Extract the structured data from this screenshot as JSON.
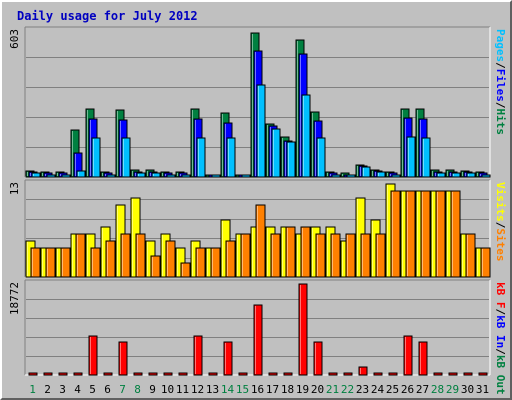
{
  "chart_data": {
    "type": "bar",
    "title": "Daily usage for July 2012",
    "categories": [
      "1",
      "2",
      "3",
      "4",
      "5",
      "6",
      "7",
      "8",
      "9",
      "10",
      "11",
      "12",
      "13",
      "14",
      "15",
      "16",
      "17",
      "18",
      "19",
      "20",
      "21",
      "22",
      "23",
      "24",
      "25",
      "26",
      "27",
      "28",
      "29",
      "30",
      "31"
    ],
    "weekend_days": [
      "1",
      "7",
      "8",
      "14",
      "15",
      "21",
      "22",
      "28",
      "29"
    ],
    "panels": [
      {
        "id": "requests",
        "max_label": "603",
        "ymax": 603,
        "side_labels": [
          "Pages",
          "/",
          "Files",
          "/",
          "Hits"
        ],
        "side_colors": [
          "#00c0ff",
          "#000000",
          "#0000ff",
          "#000000",
          "#008040"
        ],
        "series": [
          {
            "name": "Hits",
            "color": "#008040",
            "values": [
              24,
              20,
              20,
              195,
              280,
              20,
              275,
              30,
              30,
              20,
              20,
              280,
              10,
              265,
              10,
              595,
              220,
              165,
              565,
              270,
              20,
              15,
              50,
              30,
              20,
              280,
              280,
              30,
              30,
              25,
              20
            ]
          },
          {
            "name": "Files",
            "color": "#0000ff",
            "values": [
              20,
              15,
              15,
              100,
              240,
              15,
              235,
              20,
              20,
              15,
              15,
              240,
              5,
              225,
              5,
              520,
              210,
              150,
              510,
              230,
              15,
              10,
              45,
              25,
              15,
              245,
              240,
              20,
              20,
              20,
              15
            ]
          },
          {
            "name": "Pages",
            "color": "#00c0ff",
            "values": [
              15,
              10,
              10,
              25,
              160,
              10,
              160,
              15,
              15,
              10,
              10,
              160,
              2,
              160,
              2,
              380,
              200,
              145,
              340,
              160,
              10,
              5,
              40,
              20,
              10,
              165,
              160,
              15,
              15,
              15,
              10
            ]
          }
        ]
      },
      {
        "id": "visits",
        "max_label": "13",
        "ymax": 13,
        "side_labels": [
          "Visits",
          "/",
          "Sites"
        ],
        "side_colors": [
          "#ffff00",
          "#000000",
          "#ff8000"
        ],
        "series": [
          {
            "name": "Visits",
            "color": "#ffff00",
            "values": [
              5,
              4,
              4,
              6,
              6,
              7,
              10,
              11,
              5,
              6,
              4,
              5,
              4,
              8,
              6,
              7,
              7,
              7,
              6,
              7,
              7,
              5,
              11,
              8,
              13,
              12,
              12,
              12,
              12,
              6,
              4
            ]
          },
          {
            "name": "Sites",
            "color": "#ff8000",
            "values": [
              4,
              4,
              4,
              6,
              4,
              5,
              6,
              6,
              3,
              5,
              2,
              4,
              4,
              5,
              6,
              10,
              6,
              7,
              7,
              6,
              6,
              6,
              6,
              6,
              12,
              12,
              12,
              12,
              12,
              6,
              4
            ]
          }
        ]
      },
      {
        "id": "kbytes",
        "max_label": "18772",
        "ymax": 18772,
        "side_labels": [
          "kB F",
          "/",
          "kB In",
          "/",
          "kB Out"
        ],
        "side_colors": [
          "#ff0000",
          "#000000",
          "#0000ff",
          "#000000",
          "#008040"
        ],
        "series": [
          {
            "name": "kB F",
            "color": "#ff0000",
            "values": [
              250,
              250,
              400,
              400,
              8100,
              350,
              6800,
              300,
              300,
              300,
              300,
              8100,
              300,
              6800,
              300,
              14500,
              300,
              300,
              18772,
              6800,
              300,
              300,
              1600,
              300,
              300,
              8100,
              6800,
              300,
              300,
              400,
              300
            ]
          }
        ]
      }
    ]
  }
}
